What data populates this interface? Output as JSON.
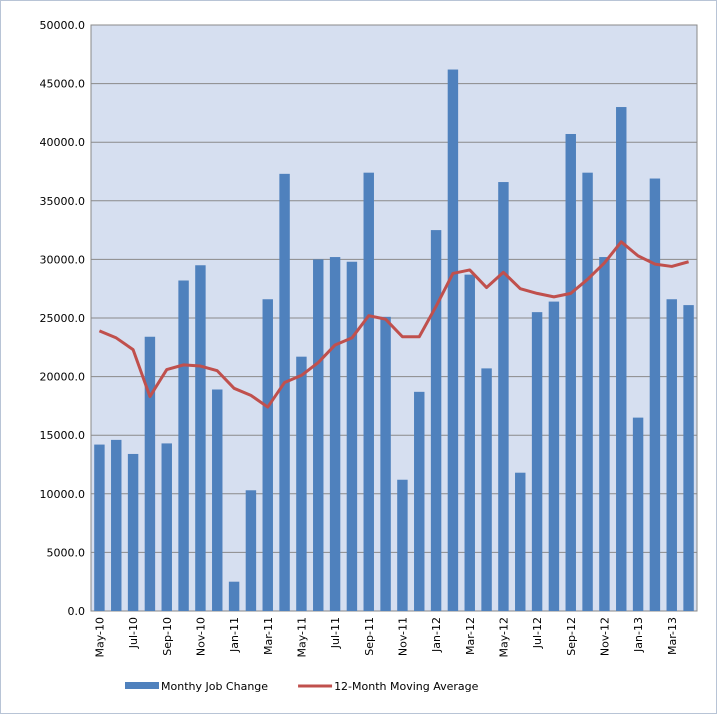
{
  "chart_data": {
    "type": "bar_line",
    "categories": [
      "May-10",
      null,
      "Jul-10",
      null,
      "Sep-10",
      null,
      "Nov-10",
      null,
      "Jan-11",
      null,
      "Mar-11",
      null,
      "May-11",
      null,
      "Jul-11",
      null,
      "Sep-11",
      null,
      "Nov-11",
      null,
      "Jan-12",
      null,
      "Mar-12",
      null,
      "May-12",
      null,
      "Jul-12",
      null,
      "Sep-12",
      null,
      "Nov-12",
      null,
      "Jan-13",
      null,
      "Mar-13",
      null
    ],
    "series": [
      {
        "name": "Monthy Job Change",
        "type": "bar",
        "color": "#4f81bd",
        "values": [
          14200,
          14600,
          13400,
          23400,
          14300,
          28200,
          29500,
          18900,
          2500,
          10300,
          26600,
          37300,
          21700,
          30000,
          30200,
          29800,
          37400,
          25100,
          11200,
          18700,
          32500,
          46200,
          28700,
          20700,
          36600,
          11800,
          25500,
          26400,
          40700,
          37400,
          30200,
          43000,
          16500,
          36900,
          26600,
          26100
        ]
      },
      {
        "name": "12-Month Moving Average",
        "type": "line",
        "color": "#c0504d",
        "values": [
          23900,
          23300,
          22300,
          18300,
          20600,
          21000,
          20900,
          20500,
          19000,
          18400,
          17400,
          19500,
          20100,
          21200,
          22700,
          23300,
          25200,
          24900,
          23400,
          23400,
          26000,
          28800,
          29100,
          27600,
          28900,
          27500,
          27100,
          26800,
          27100,
          28300,
          29700,
          31500,
          30300,
          29600,
          29400,
          29800
        ]
      }
    ],
    "ylim": [
      0,
      50000
    ],
    "yticks": [
      {
        "value": 0,
        "label": "0.0"
      },
      {
        "value": 5000,
        "label": "5000.0"
      },
      {
        "value": 10000,
        "label": "10000.0"
      },
      {
        "value": 15000,
        "label": "15000.0"
      },
      {
        "value": 20000,
        "label": "20000.0"
      },
      {
        "value": 25000,
        "label": "25000.0"
      },
      {
        "value": 30000,
        "label": "30000.0"
      },
      {
        "value": 35000,
        "label": "35000.0"
      },
      {
        "value": 40000,
        "label": "40000.0"
      },
      {
        "value": 45000,
        "label": "45000.0"
      },
      {
        "value": 50000,
        "label": "50000.0"
      }
    ],
    "grid": true,
    "legend": "bottom"
  }
}
